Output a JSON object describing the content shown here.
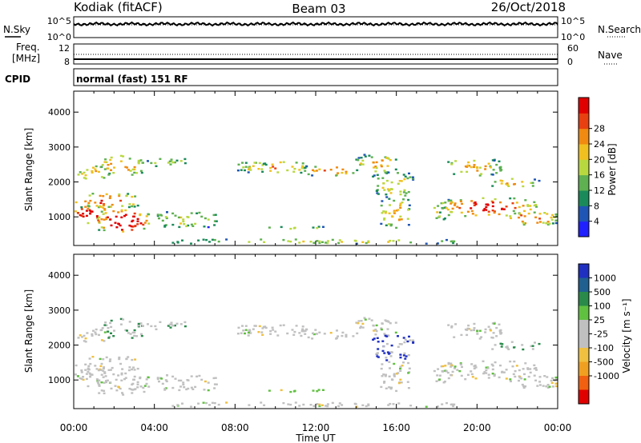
{
  "header": {
    "station": "Kodiak (fitACF)",
    "beam": "Beam 03",
    "date": "26/Oct/2018"
  },
  "noise_panel": {
    "left_label": "N.Sky",
    "left_ticks": [
      "10^5",
      "10^0"
    ],
    "right_label": "N.Search",
    "right_ticks": [
      "10^5",
      "10^0"
    ]
  },
  "freq_panel": {
    "left_label_1": "Freq.",
    "left_label_2": "[MHz]",
    "left_ticks": [
      "12",
      "8"
    ],
    "right_label": "Nave",
    "right_ticks": [
      "60",
      "0"
    ]
  },
  "cpid_panel": {
    "label": "CPID",
    "mode_text": "normal (fast) 151 RF"
  },
  "chart_data": [
    {
      "type": "heatmap",
      "name": "power",
      "ylabel": "Slant Range [km]",
      "ylim": [
        180,
        4600
      ],
      "yticks": [
        "1000",
        "2000",
        "3000",
        "4000"
      ],
      "xlim": [
        0,
        24
      ],
      "colorbar_label": "Power [dB]",
      "colorbar_ticks": [
        "4",
        "8",
        "12",
        "16",
        "20",
        "24",
        "28"
      ],
      "colorbar_colors": [
        "#2020ff",
        "#1f55b4",
        "#1a8a5a",
        "#5eb050",
        "#b8d840",
        "#f0c020",
        "#f08a10",
        "#e84010",
        "#e00000"
      ]
    },
    {
      "type": "heatmap",
      "name": "velocity",
      "ylabel": "Slant Range [km]",
      "ylim": [
        180,
        4600
      ],
      "yticks": [
        "1000",
        "2000",
        "3000",
        "4000"
      ],
      "xlim": [
        0,
        24
      ],
      "colorbar_label": "Velocity [m s⁻¹]",
      "colorbar_ticks": [
        "1000",
        "500",
        "100",
        "25",
        "-25",
        "-100",
        "-500",
        "-1000"
      ],
      "colorbar_colors": [
        "#2030c0",
        "#206090",
        "#2a8a4a",
        "#60c040",
        "#c0c0c0",
        "#c0c0c0",
        "#f0c040",
        "#f0a020",
        "#f06010",
        "#e00000"
      ]
    }
  ],
  "x_axis": {
    "ticks": [
      "00:00",
      "04:00",
      "08:00",
      "12:00",
      "16:00",
      "20:00",
      "00:00"
    ],
    "label": "Time UT"
  }
}
